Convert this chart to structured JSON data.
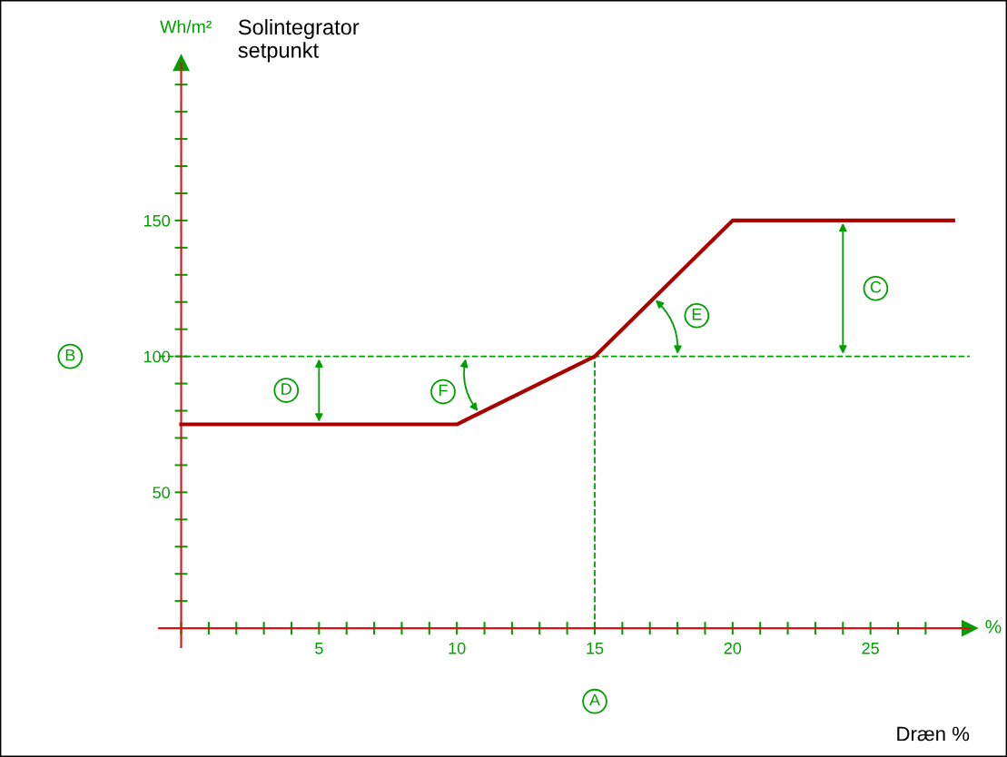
{
  "chart_data": {
    "type": "line",
    "title": "Solintegrator\nsetpunkt",
    "xlabel": "Dræn %",
    "ylabel": "Wh/m²",
    "x": [
      0,
      10,
      15,
      20,
      28
    ],
    "series": [
      {
        "color": "#aa0000",
        "values": [
          75,
          75,
          100,
          150,
          150
        ]
      }
    ],
    "xlim": [
      -0.8,
      28.6
    ],
    "ylim": [
      -7,
      208
    ],
    "xticks": [
      {
        "value": 0,
        "label": null
      },
      {
        "value": 1,
        "label": null
      },
      {
        "value": 2,
        "label": null
      },
      {
        "value": 3,
        "label": null
      },
      {
        "value": 4,
        "label": null
      },
      5,
      {
        "value": 6,
        "label": null
      },
      {
        "value": 7,
        "label": null
      },
      {
        "value": 8,
        "label": null
      },
      {
        "value": 9,
        "label": null
      },
      10,
      {
        "value": 11,
        "label": null
      },
      {
        "value": 12,
        "label": null
      },
      {
        "value": 13,
        "label": null
      },
      {
        "value": 14,
        "label": null
      },
      15,
      {
        "value": 16,
        "label": null
      },
      {
        "value": 17,
        "label": null
      },
      {
        "value": 18,
        "label": null
      },
      {
        "value": 19,
        "label": null
      },
      20,
      {
        "value": 21,
        "label": null
      },
      {
        "value": 22,
        "label": null
      },
      {
        "value": 23,
        "label": null
      },
      {
        "value": 24,
        "label": null
      },
      25,
      {
        "value": 26,
        "label": null
      },
      {
        "value": 27,
        "label": null
      }
    ],
    "yticks": [
      {
        "value": 10,
        "label": null
      },
      {
        "value": 20,
        "label": null
      },
      {
        "value": 30,
        "label": null
      },
      {
        "value": 40,
        "label": null
      },
      50,
      {
        "value": 60,
        "label": null
      },
      {
        "value": 70,
        "label": null
      },
      {
        "value": 80,
        "label": null
      },
      {
        "value": 90,
        "label": null
      },
      100,
      {
        "value": 110,
        "label": null
      },
      {
        "value": 120,
        "label": null
      },
      {
        "value": 130,
        "label": null
      },
      {
        "value": 140,
        "label": null
      },
      150,
      {
        "value": 160,
        "label": null
      },
      {
        "value": 170,
        "label": null
      },
      {
        "value": 180,
        "label": null
      },
      {
        "value": 190,
        "label": null
      },
      {
        "value": 200,
        "label": null
      }
    ],
    "ref_lines": [
      {
        "axis": "y",
        "value": 100,
        "label": "B",
        "color": "#00a000",
        "line_style": "dashed"
      },
      {
        "axis": "x",
        "value": 15,
        "label": "A",
        "color": "#00a000",
        "line_style": "dashed"
      }
    ],
    "annotations": [
      "%",
      "D",
      "C",
      {
        "text": "F",
        "x": 9.5,
        "y": 87
      },
      {
        "text": "E",
        "x": 18.7,
        "y": 115
      }
    ],
    "grid": false,
    "legend": false,
    "marker": "none",
    "line_style": "solid"
  }
}
